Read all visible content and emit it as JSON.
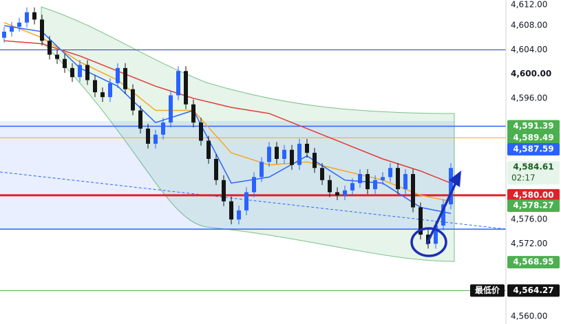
{
  "chart_data": {
    "type": "candlestick",
    "ylim": [
      4560,
      4612
    ],
    "yticks": [
      {
        "value": 4612,
        "label": "4,612.00"
      },
      {
        "value": 4608,
        "label": "4,608.00"
      },
      {
        "value": 4604,
        "label": "4,604.00"
      },
      {
        "value": 4600,
        "label": "4,600.00"
      },
      {
        "value": 4596,
        "label": "4,596.00"
      },
      {
        "value": 4576,
        "label": "4,576.00"
      },
      {
        "value": 4572,
        "label": "4,572.00"
      },
      {
        "value": 4560,
        "label": "4,560.00"
      }
    ],
    "up_color": "#2962ff",
    "down_color": "#151515",
    "candles": [
      [
        4606.0,
        4607.8,
        4605.2,
        4607.0
      ],
      [
        4607.0,
        4608.6,
        4606.2,
        4607.8
      ],
      [
        4607.8,
        4609.3,
        4607.0,
        4608.5
      ],
      [
        4608.5,
        4611.0,
        4607.7,
        4610.2
      ],
      [
        4610.2,
        4611.0,
        4608.2,
        4609.0
      ],
      [
        4609.0,
        4609.8,
        4604.7,
        4605.5
      ],
      [
        4605.5,
        4606.3,
        4602.4,
        4603.2
      ],
      [
        4603.2,
        4604.0,
        4601.7,
        4602.5
      ],
      [
        4602.5,
        4603.3,
        4600.2,
        4601.0
      ],
      [
        4601.0,
        4601.8,
        4598.7,
        4599.5
      ],
      [
        4599.5,
        4602.3,
        4598.7,
        4601.5
      ],
      [
        4601.5,
        4602.3,
        4598.2,
        4599.0
      ],
      [
        4599.0,
        4599.8,
        4596.2,
        4597.0
      ],
      [
        4597.0,
        4597.8,
        4595.4,
        4596.2
      ],
      [
        4596.2,
        4599.3,
        4595.4,
        4598.5
      ],
      [
        4598.5,
        4601.8,
        4597.7,
        4601.0
      ],
      [
        4601.0,
        4601.8,
        4596.7,
        4597.5
      ],
      [
        4597.5,
        4598.3,
        4593.2,
        4594.0
      ],
      [
        4594.0,
        4594.8,
        4590.2,
        4591.0
      ],
      [
        4591.0,
        4591.8,
        4587.7,
        4588.5
      ],
      [
        4588.5,
        4590.8,
        4587.7,
        4590.0
      ],
      [
        4590.0,
        4592.8,
        4589.2,
        4592.0
      ],
      [
        4592.0,
        4597.3,
        4591.2,
        4596.5
      ],
      [
        4596.5,
        4601.3,
        4595.7,
        4600.5
      ],
      [
        4600.5,
        4601.3,
        4594.2,
        4595.0
      ],
      [
        4595.0,
        4595.8,
        4591.2,
        4592.0
      ],
      [
        4592.0,
        4592.8,
        4588.2,
        4589.0
      ],
      [
        4589.0,
        4589.8,
        4585.2,
        4586.0
      ],
      [
        4586.0,
        4586.8,
        4581.7,
        4582.5
      ],
      [
        4582.5,
        4583.3,
        4578.2,
        4579.0
      ],
      [
        4579.0,
        4579.8,
        4575.2,
        4576.0
      ],
      [
        4576.0,
        4578.3,
        4575.2,
        4577.5
      ],
      [
        4577.5,
        4581.3,
        4576.7,
        4580.5
      ],
      [
        4580.5,
        4583.8,
        4579.7,
        4583.0
      ],
      [
        4583.0,
        4586.3,
        4582.2,
        4585.5
      ],
      [
        4585.5,
        4588.8,
        4584.7,
        4588.0
      ],
      [
        4588.0,
        4588.8,
        4585.2,
        4586.0
      ],
      [
        4586.0,
        4588.3,
        4585.2,
        4587.5
      ],
      [
        4587.5,
        4588.3,
        4584.2,
        4585.0
      ],
      [
        4585.0,
        4589.3,
        4584.2,
        4588.5
      ],
      [
        4588.5,
        4589.3,
        4586.2,
        4587.0
      ],
      [
        4587.0,
        4587.8,
        4583.7,
        4584.5
      ],
      [
        4584.5,
        4585.3,
        4581.7,
        4582.5
      ],
      [
        4582.5,
        4583.3,
        4579.7,
        4580.5
      ],
      [
        4580.5,
        4581.3,
        4579.2,
        4580.0
      ],
      [
        4580.0,
        4581.6,
        4579.2,
        4580.8
      ],
      [
        4580.8,
        4582.8,
        4580.0,
        4582.0
      ],
      [
        4582.0,
        4584.3,
        4581.2,
        4583.5
      ],
      [
        4583.5,
        4584.3,
        4580.2,
        4581.0
      ],
      [
        4581.0,
        4583.3,
        4580.2,
        4582.5
      ],
      [
        4582.5,
        4583.8,
        4581.7,
        4583.0
      ],
      [
        4583.0,
        4585.3,
        4582.2,
        4584.5
      ],
      [
        4584.5,
        4585.3,
        4580.2,
        4581.0
      ],
      [
        4581.0,
        4584.3,
        4580.2,
        4583.5
      ],
      [
        4583.5,
        4584.3,
        4577.2,
        4578.0
      ],
      [
        4578.0,
        4578.8,
        4572.7,
        4573.5
      ],
      [
        4573.5,
        4574.3,
        4571.2,
        4572.0
      ],
      [
        4572.0,
        4575.8,
        4571.2,
        4575.0
      ],
      [
        4575.0,
        4579.3,
        4574.2,
        4578.5
      ],
      [
        4578.5,
        4585.3,
        4577.7,
        4584.5
      ]
    ],
    "overlays": [
      {
        "color": "#e53935",
        "x": [
          0,
          5,
          10,
          15,
          20,
          25,
          30,
          35,
          40,
          45,
          50,
          55,
          59
        ],
        "values": [
          4605.5,
          4605,
          4603,
          4600.5,
          4598,
          4596,
          4594.5,
          4593.5,
          4591,
          4588.5,
          4586,
          4584,
          4582
        ]
      },
      {
        "color": "#f5a623",
        "x": [
          0,
          5,
          10,
          15,
          20,
          25,
          30,
          35,
          40,
          45,
          50,
          55,
          59
        ],
        "values": [
          4608.5,
          4606,
          4602,
          4599,
          4594,
          4594,
          4587,
          4585,
          4585.5,
          4584,
          4582.5,
          4580,
          4579
        ]
      },
      {
        "color": "#2962ff",
        "x": [
          0,
          5,
          10,
          15,
          20,
          25,
          30,
          35,
          40,
          45,
          50,
          55,
          59
        ],
        "values": [
          4608,
          4607,
          4601,
          4598,
          4592,
          4594,
          4582,
          4583,
          4586.5,
          4582.5,
          4582,
          4578,
          4577
        ]
      }
    ],
    "levels": [
      {
        "value": 4604,
        "color": "#2a3f9e",
        "width": 1
      },
      {
        "value": 4591.39,
        "color": "#2962ff",
        "width": 1.5
      },
      {
        "value": 4589.49,
        "color": "#f5a623",
        "width": 1
      },
      {
        "value": 4580,
        "color": "#e0202a",
        "width": 3
      },
      {
        "value": 4574.4,
        "color": "#2962ff",
        "width": 1.5
      },
      {
        "value": 4564.27,
        "color": "#4caf50",
        "width": 1
      }
    ],
    "price_tags": [
      {
        "value": 4591.39,
        "label": "4,591.39",
        "color": "#4caf50"
      },
      {
        "value": 4589.49,
        "label": "4,589.49",
        "color": "#4caf50"
      },
      {
        "value": 4587.59,
        "label": "4,587.59",
        "color": "#2962ff"
      },
      {
        "value": 4584.61,
        "label": "4,584.61",
        "color": "#e6f4ea",
        "countdown": "02:17"
      },
      {
        "value": 4580.0,
        "label": "4,580.00",
        "color": "#e0202a"
      },
      {
        "value": 4578.27,
        "label": "4,578.27",
        "color": "#4caf50"
      },
      {
        "value": 4568.95,
        "label": "4,568.95",
        "color": "#4caf50"
      },
      {
        "value": 4564.27,
        "label": "4,564.27",
        "color": "#111111",
        "prefix": "最低价"
      }
    ]
  }
}
